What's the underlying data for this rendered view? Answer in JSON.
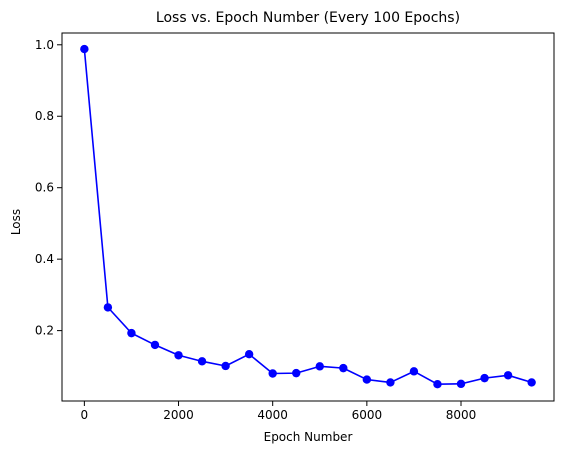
{
  "chart_data": {
    "type": "line",
    "title": "Loss vs. Epoch Number (Every 100 Epochs)",
    "xlabel": "Epoch Number",
    "ylabel": "Loss",
    "grid": false,
    "legend": "none",
    "xlim": [
      -475,
      9975
    ],
    "ylim": [
      0.003,
      1.033
    ],
    "x_ticks": [
      0,
      2000,
      4000,
      6000,
      8000
    ],
    "y_ticks": [
      0.2,
      0.4,
      0.6,
      0.8,
      1.0
    ],
    "x_tick_labels": [
      "0",
      "2000",
      "4000",
      "6000",
      "8000"
    ],
    "y_tick_labels": [
      "0.2",
      "0.4",
      "0.6",
      "0.8",
      "1.0"
    ],
    "series": [
      {
        "name": "Loss",
        "color": "#0000ff",
        "marker": "circle",
        "x": [
          0,
          500,
          1000,
          1500,
          2000,
          2500,
          3000,
          3500,
          4000,
          4500,
          5000,
          5500,
          6000,
          6500,
          7000,
          7500,
          8000,
          8500,
          9000,
          9500
        ],
        "values": [
          0.988,
          0.265,
          0.193,
          0.16,
          0.131,
          0.114,
          0.101,
          0.134,
          0.08,
          0.081,
          0.1,
          0.095,
          0.063,
          0.055,
          0.086,
          0.05,
          0.051,
          0.067,
          0.075,
          0.055
        ]
      }
    ]
  }
}
